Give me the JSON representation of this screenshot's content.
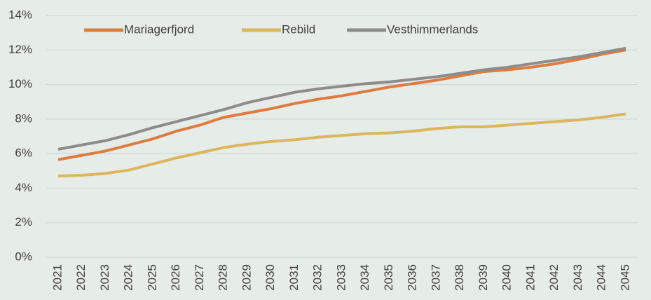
{
  "chart_data": {
    "type": "line",
    "categories": [
      "2021",
      "2022",
      "2023",
      "2024",
      "2025",
      "2026",
      "2027",
      "2028",
      "2029",
      "2030",
      "2031",
      "2032",
      "2033",
      "2034",
      "2035",
      "2036",
      "2037",
      "2038",
      "2039",
      "2040",
      "2041",
      "2042",
      "2043",
      "2044",
      "2045"
    ],
    "series": [
      {
        "name": "Mariagerfjord",
        "color": "#e07b40",
        "values": [
          5.65,
          5.9,
          6.15,
          6.5,
          6.85,
          7.3,
          7.65,
          8.1,
          8.35,
          8.6,
          8.9,
          9.15,
          9.35,
          9.6,
          9.85,
          10.05,
          10.25,
          10.5,
          10.75,
          10.85,
          11.0,
          11.2,
          11.45,
          11.75,
          12.0
        ]
      },
      {
        "name": "Rebild",
        "color": "#dcb55d",
        "values": [
          4.7,
          4.75,
          4.85,
          5.05,
          5.4,
          5.75,
          6.05,
          6.35,
          6.55,
          6.7,
          6.8,
          6.95,
          7.05,
          7.15,
          7.2,
          7.3,
          7.45,
          7.55,
          7.55,
          7.65,
          7.75,
          7.85,
          7.95,
          8.1,
          8.3
        ]
      },
      {
        "name": "Vesthimmerlands",
        "color": "#8c8c8c",
        "values": [
          6.25,
          6.5,
          6.75,
          7.1,
          7.5,
          7.85,
          8.2,
          8.55,
          8.95,
          9.25,
          9.55,
          9.75,
          9.9,
          10.05,
          10.15,
          10.3,
          10.45,
          10.65,
          10.85,
          11.0,
          11.2,
          11.4,
          11.6,
          11.85,
          12.1
        ]
      }
    ],
    "ylim": [
      0,
      14
    ],
    "yticks": [
      {
        "value": 0,
        "label": "0%"
      },
      {
        "value": 2,
        "label": "2%"
      },
      {
        "value": 4,
        "label": "4%"
      },
      {
        "value": 6,
        "label": "6%"
      },
      {
        "value": 8,
        "label": "8%"
      },
      {
        "value": 10,
        "label": "10%"
      },
      {
        "value": 12,
        "label": "12%"
      },
      {
        "value": 14,
        "label": "14%"
      }
    ],
    "grid": true,
    "legend": "top"
  }
}
